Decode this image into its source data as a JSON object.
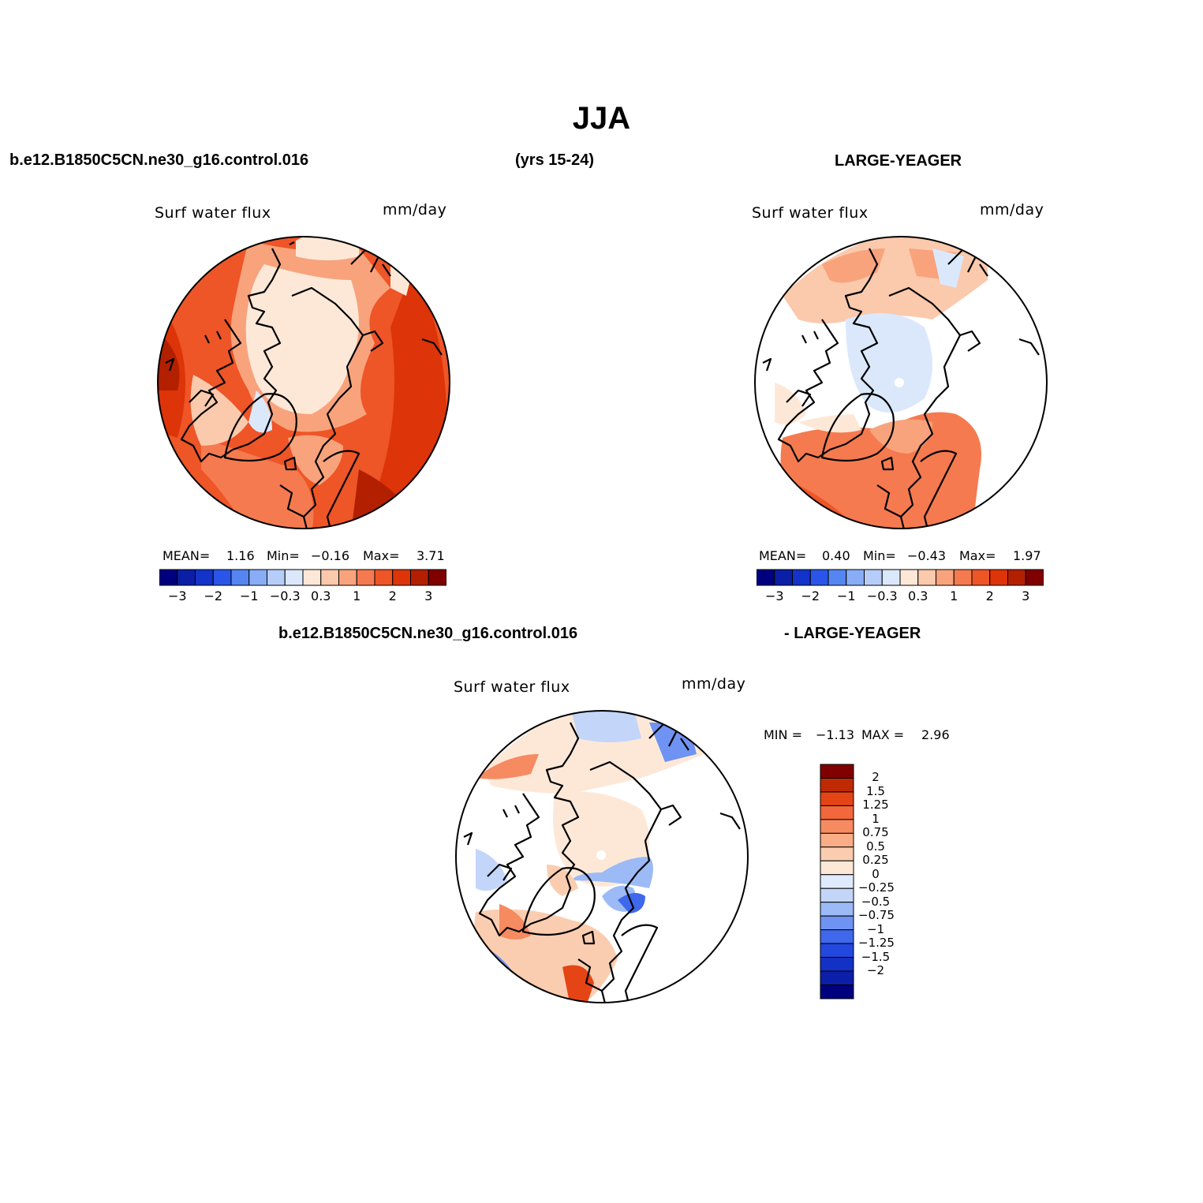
{
  "header": {
    "season": "JJA",
    "case_name": "b.e12.B1850C5CN.ne30_g16.control.016",
    "years": "(yrs 15-24)",
    "reference": "LARGE-YEAGER",
    "diff_case": "b.e12.B1850C5CN.ne30_g16.control.016",
    "diff_ref": "- LARGE-YEAGER"
  },
  "colors": {
    "blue_scale": [
      "#00007f",
      "#0a1fa5",
      "#1433c9",
      "#2a55e8",
      "#5585f0",
      "#88acf5",
      "#b5cdf8",
      "#dbe8fc"
    ],
    "red_scale": [
      "#fde8d8",
      "#fbc9ac",
      "#f8a37c",
      "#f57a4f",
      "#ee5527",
      "#dd3409",
      "#b32000",
      "#800000"
    ],
    "diff_scale": [
      "#00007f",
      "#0b1fa8",
      "#1431c6",
      "#2348e0",
      "#3f68ec",
      "#6e93f2",
      "#9cbaf6",
      "#c3d6fa",
      "#dfebfd",
      "#fde8d8",
      "#fbcdb0",
      "#f9ad87",
      "#f68a60",
      "#f2673b",
      "#e54415",
      "#c02a02",
      "#800000"
    ]
  },
  "panels": [
    {
      "id": "model",
      "variable": "Surf water flux",
      "units": "mm/day",
      "stats": {
        "mean_label": "MEAN=",
        "mean": "1.16",
        "min_label": "Min=",
        "min": "−0.16",
        "max_label": "Max=",
        "max": "3.71"
      },
      "colorbar_labels": [
        "−3",
        "−2",
        "−1",
        "−0.3",
        "0.3",
        "1",
        "2",
        "3"
      ]
    },
    {
      "id": "obs",
      "variable": "Surf water flux",
      "units": "mm/day",
      "stats": {
        "mean_label": "MEAN=",
        "mean": "0.40",
        "min_label": "Min=",
        "min": "−0.43",
        "max_label": "Max=",
        "max": "1.97"
      },
      "colorbar_labels": [
        "−3",
        "−2",
        "−1",
        "−0.3",
        "0.3",
        "1",
        "2",
        "3"
      ]
    },
    {
      "id": "diff",
      "variable": "Surf water flux",
      "units": "mm/day",
      "stats": {
        "min_label": "MIN =",
        "min": "−1.13",
        "max_label": "MAX =",
        "max": "2.96"
      },
      "colorbar_labels": [
        "2",
        "1.5",
        "1.25",
        "1",
        "0.75",
        "0.5",
        "0.25",
        "0",
        "−0.25",
        "−0.5",
        "−0.75",
        "−1",
        "−1.25",
        "−1.5",
        "−2"
      ]
    }
  ]
}
